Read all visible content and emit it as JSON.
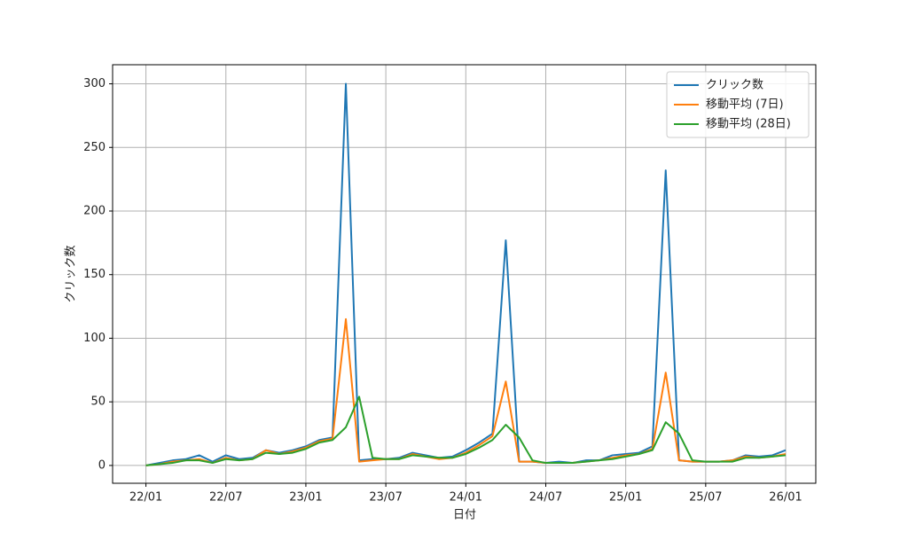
{
  "chart_data": {
    "type": "line",
    "xlabel": "日付",
    "ylabel": "クリック数",
    "x": [
      "22/01",
      "22/02",
      "22/03",
      "22/04",
      "22/05",
      "22/06",
      "22/07",
      "22/08",
      "22/09",
      "22/10",
      "22/11",
      "22/12",
      "23/01",
      "23/02",
      "23/03",
      "23/04",
      "23/05",
      "23/06",
      "23/07",
      "23/08",
      "23/09",
      "23/10",
      "23/11",
      "23/12",
      "24/01",
      "24/02",
      "24/03",
      "24/04",
      "24/05",
      "24/06",
      "24/07",
      "24/08",
      "24/09",
      "24/10",
      "24/11",
      "24/12",
      "25/01",
      "25/02",
      "25/03",
      "25/04",
      "25/05",
      "25/06",
      "25/07",
      "25/08",
      "25/09",
      "25/10",
      "25/11",
      "25/12",
      "26/01"
    ],
    "series": [
      {
        "name": "クリック数",
        "color": "#1f77b4",
        "values": [
          0,
          2,
          4,
          5,
          8,
          3,
          8,
          5,
          6,
          12,
          10,
          12,
          15,
          20,
          22,
          300,
          4,
          5,
          5,
          6,
          10,
          8,
          6,
          7,
          12,
          18,
          25,
          177,
          3,
          3,
          2,
          3,
          2,
          4,
          4,
          8,
          9,
          10,
          15,
          232,
          4,
          3,
          3,
          3,
          4,
          8,
          7,
          8,
          12
        ]
      },
      {
        "name": "移動平均 (7日)",
        "color": "#ff7f0e",
        "values": [
          0,
          1,
          3,
          4,
          5,
          2,
          6,
          4,
          5,
          12,
          9,
          11,
          14,
          19,
          21,
          115,
          3,
          4,
          5,
          5,
          9,
          7,
          5,
          6,
          10,
          16,
          23,
          66,
          3,
          3,
          2,
          2,
          2,
          3,
          4,
          6,
          8,
          9,
          13,
          73,
          4,
          3,
          3,
          3,
          4,
          7,
          6,
          7,
          9
        ]
      },
      {
        "name": "移動平均 (28日)",
        "color": "#2ca02c",
        "values": [
          0,
          1,
          2,
          4,
          4,
          2,
          5,
          4,
          5,
          10,
          9,
          10,
          13,
          18,
          20,
          30,
          54,
          6,
          5,
          5,
          8,
          7,
          6,
          6,
          9,
          14,
          20,
          32,
          22,
          4,
          2,
          2,
          2,
          3,
          4,
          5,
          7,
          9,
          12,
          34,
          25,
          4,
          3,
          3,
          3,
          6,
          6,
          7,
          8
        ]
      }
    ],
    "ylim": [
      -14,
      315
    ],
    "yticks": [
      0,
      50,
      100,
      150,
      200,
      250,
      300
    ],
    "xticks": [
      "22/01",
      "22/07",
      "23/01",
      "23/07",
      "24/01",
      "24/07",
      "25/01",
      "25/07",
      "26/01"
    ],
    "grid": true,
    "legend": "upper right"
  }
}
